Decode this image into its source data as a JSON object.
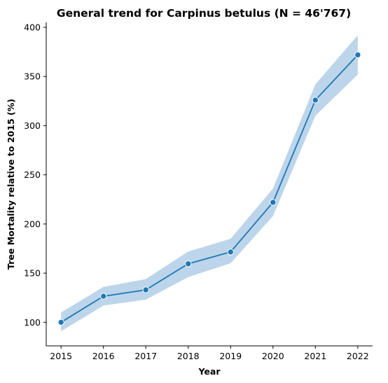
{
  "chart_data": {
    "type": "line",
    "title": "General trend for Carpinus betulus  (N = 46'767)",
    "xlabel": "Year",
    "ylabel": "Tree Mortality relative to 2015 (%)",
    "x": [
      2015,
      2016,
      2017,
      2018,
      2019,
      2020,
      2021,
      2022
    ],
    "x_tick_labels": [
      "2015",
      "2016",
      "2017",
      "2018",
      "2019",
      "2020",
      "2021",
      "2022"
    ],
    "y_ticks": [
      100,
      150,
      200,
      250,
      300,
      350,
      400
    ],
    "y_tick_labels": [
      "100",
      "150",
      "200",
      "250",
      "300",
      "350",
      "400"
    ],
    "xlim": [
      2014.65,
      2022.35
    ],
    "ylim": [
      76,
      405
    ],
    "series": [
      {
        "values": [
          100,
          126.5,
          133,
          159.5,
          171.5,
          222,
          326,
          372
        ],
        "ci_lower": [
          91,
          117,
          123,
          146,
          160,
          208,
          310,
          352
        ],
        "ci_upper": [
          110,
          136,
          144,
          172,
          185,
          236,
          342,
          392
        ],
        "color": "#1f77b4",
        "band_color": "#bcd5ea"
      }
    ],
    "markers": true,
    "grid": false,
    "legend": "none"
  }
}
